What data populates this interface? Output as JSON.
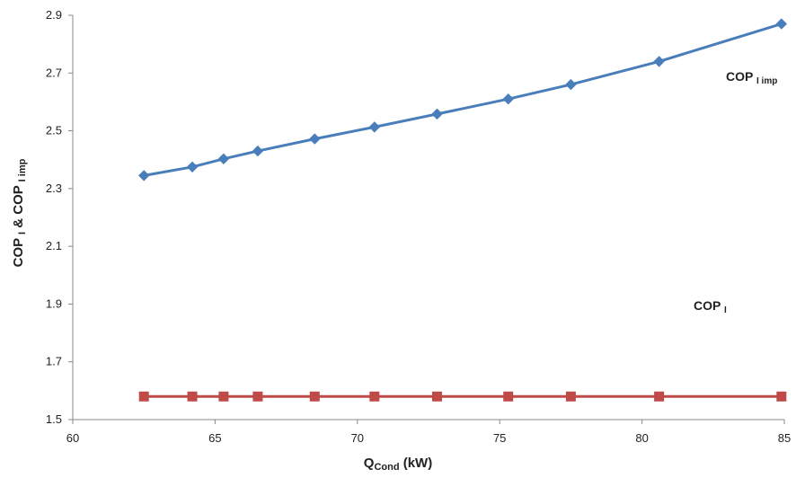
{
  "chart_data": {
    "type": "line",
    "xlim": [
      60,
      85
    ],
    "ylim": [
      1.5,
      2.9
    ],
    "x_ticks": [
      "60",
      "65",
      "70",
      "75",
      "80",
      "85"
    ],
    "y_ticks": [
      "1.5",
      "1.7",
      "1.9",
      "2.1",
      "2.3",
      "2.5",
      "2.7",
      "2.9"
    ],
    "x_tick_values": [
      60,
      65,
      70,
      75,
      80,
      85
    ],
    "y_tick_values": [
      1.5,
      1.7,
      1.9,
      2.1,
      2.3,
      2.5,
      2.7,
      2.9
    ],
    "xlabel": {
      "main": "Q",
      "sub": "Cond",
      "tail": " (kW)"
    },
    "ylabel": {
      "p1": "COP ",
      "s1": "I",
      "p2": " & COP ",
      "s2": "I imp"
    },
    "grid": false,
    "series": [
      {
        "name": "COP I imp",
        "label_main": "COP ",
        "label_sub": "I imp",
        "color": "#4a7ebb",
        "marker": "diamond",
        "x": [
          62.5,
          64.2,
          65.3,
          66.5,
          68.5,
          70.6,
          72.8,
          75.3,
          77.5,
          80.6,
          84.9
        ],
        "y": [
          2.345,
          2.375,
          2.403,
          2.43,
          2.472,
          2.513,
          2.558,
          2.61,
          2.66,
          2.74,
          2.87
        ]
      },
      {
        "name": "COP I",
        "label_main": "COP ",
        "label_sub": "I",
        "color": "#be4b48",
        "marker": "square",
        "x": [
          62.5,
          64.2,
          65.3,
          66.5,
          68.5,
          70.6,
          72.8,
          75.3,
          77.5,
          80.6,
          84.9
        ],
        "y": [
          1.58,
          1.58,
          1.58,
          1.58,
          1.58,
          1.58,
          1.58,
          1.58,
          1.58,
          1.58,
          1.58
        ]
      }
    ]
  }
}
